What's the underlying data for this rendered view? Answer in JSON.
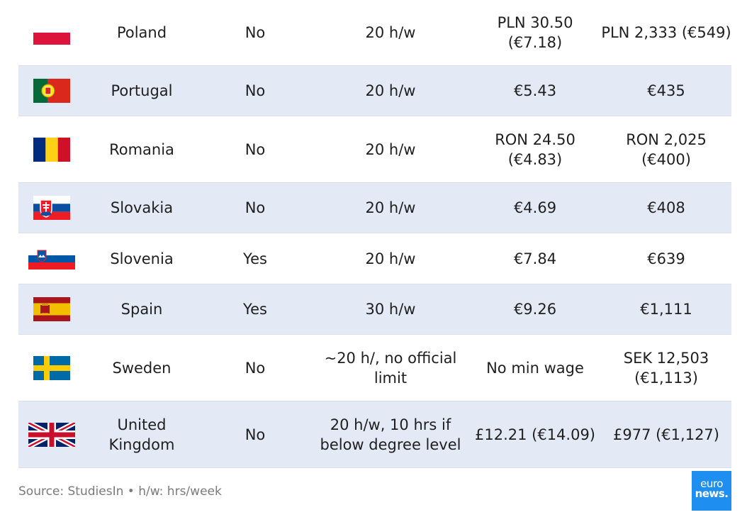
{
  "rows": [
    {
      "flag": "poland-flag-icon",
      "country": "Poland",
      "post_study": "No",
      "hours": "20 h/w",
      "hourly": "PLN 30.50 (€7.18)",
      "monthly": "PLN 2,333 (€549)"
    },
    {
      "flag": "portugal-flag-icon",
      "country": "Portugal",
      "post_study": "No",
      "hours": "20 h/w",
      "hourly": "€5.43",
      "monthly": "€435"
    },
    {
      "flag": "romania-flag-icon",
      "country": "Romania",
      "post_study": "No",
      "hours": "20 h/w",
      "hourly": "RON 24.50 (€4.83)",
      "monthly": "RON 2,025 (€400)"
    },
    {
      "flag": "slovakia-flag-icon",
      "country": "Slovakia",
      "post_study": "No",
      "hours": "20 h/w",
      "hourly": "€4.69",
      "monthly": "€408"
    },
    {
      "flag": "slovenia-flag-icon",
      "country": "Slovenia",
      "post_study": "Yes",
      "hours": "20 h/w",
      "hourly": "€7.84",
      "monthly": "€639"
    },
    {
      "flag": "spain-flag-icon",
      "country": "Spain",
      "post_study": "Yes",
      "hours": "30 h/w",
      "hourly": "€9.26",
      "monthly": "€1,111"
    },
    {
      "flag": "sweden-flag-icon",
      "country": "Sweden",
      "post_study": "No",
      "hours": "~20 h/, no official limit",
      "hourly": "No min wage",
      "monthly": "SEK 12,503 (€1,113)"
    },
    {
      "flag": "uk-flag-icon",
      "country": "United Kingdom",
      "post_study": "No",
      "hours": "20 h/w, 10 hrs if below degree level",
      "hourly": "£12.21 (€14.09)",
      "monthly": "£977 (€1,127)"
    }
  ],
  "chart_data": {
    "type": "table",
    "columns": [],
    "rows": [
      [
        "Poland",
        "No",
        "20 h/w",
        "PLN 30.50 (€7.18)",
        "PLN 2,333 (€549)"
      ],
      [
        "Portugal",
        "No",
        "20 h/w",
        "€5.43",
        "€435"
      ],
      [
        "Romania",
        "No",
        "20 h/w",
        "RON 24.50 (€4.83)",
        "RON 2,025 (€400)"
      ],
      [
        "Slovakia",
        "No",
        "20 h/w",
        "€4.69",
        "€408"
      ],
      [
        "Slovenia",
        "Yes",
        "20 h/w",
        "€7.84",
        "€639"
      ],
      [
        "Spain",
        "Yes",
        "30 h/w",
        "€9.26",
        "€1,111"
      ],
      [
        "Sweden",
        "No",
        "~20 h/, no official limit",
        "No min wage",
        "SEK 12,503 (€1,113)"
      ],
      [
        "United Kingdom",
        "No",
        "20 h/w, 10 hrs if below degree level",
        "£12.21 (€14.09)",
        "£977 (€1,127)"
      ]
    ],
    "row_shading": "alternating light blue",
    "grid": false
  },
  "footer": {
    "source": "Source: StudiesIn • h/w: hrs/week"
  },
  "logo": {
    "line1": "euro",
    "line2": "news.",
    "color": "#1e8ff0"
  },
  "colors": {
    "row_shade": "#e3e9f5",
    "text": "#1f1f1f",
    "footer_text": "#7a7a7a"
  }
}
